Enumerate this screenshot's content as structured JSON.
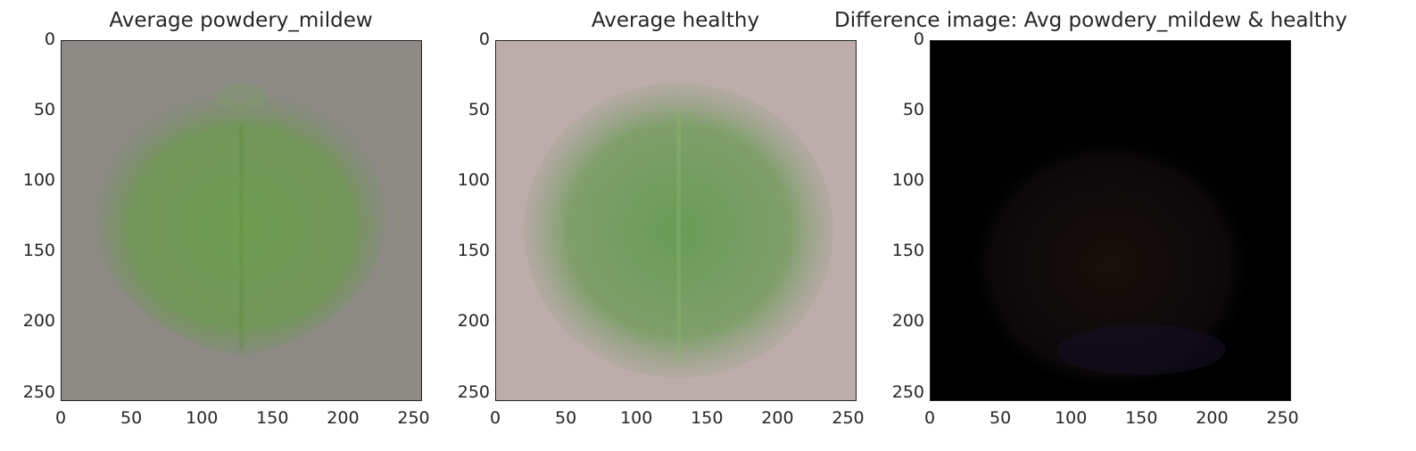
{
  "figure": {
    "panels": [
      {
        "title": "Average powdery_mildew",
        "background": "#8d8a86",
        "leaf_color": "#6aa04a",
        "shape": "heart"
      },
      {
        "title": "Average healthy",
        "background": "#bcacaa",
        "leaf_color": "#5f9a4c",
        "shape": "round"
      },
      {
        "title": "Difference image: Avg powdery_mildew & healthy",
        "background": "#000000",
        "leaf_color": "#1a120c",
        "shape": "faint"
      }
    ],
    "axis": {
      "x_ticks": [
        "0",
        "50",
        "100",
        "150",
        "200",
        "250"
      ],
      "y_ticks": [
        "0",
        "50",
        "100",
        "150",
        "200",
        "250"
      ],
      "range": [
        0,
        256
      ]
    }
  }
}
